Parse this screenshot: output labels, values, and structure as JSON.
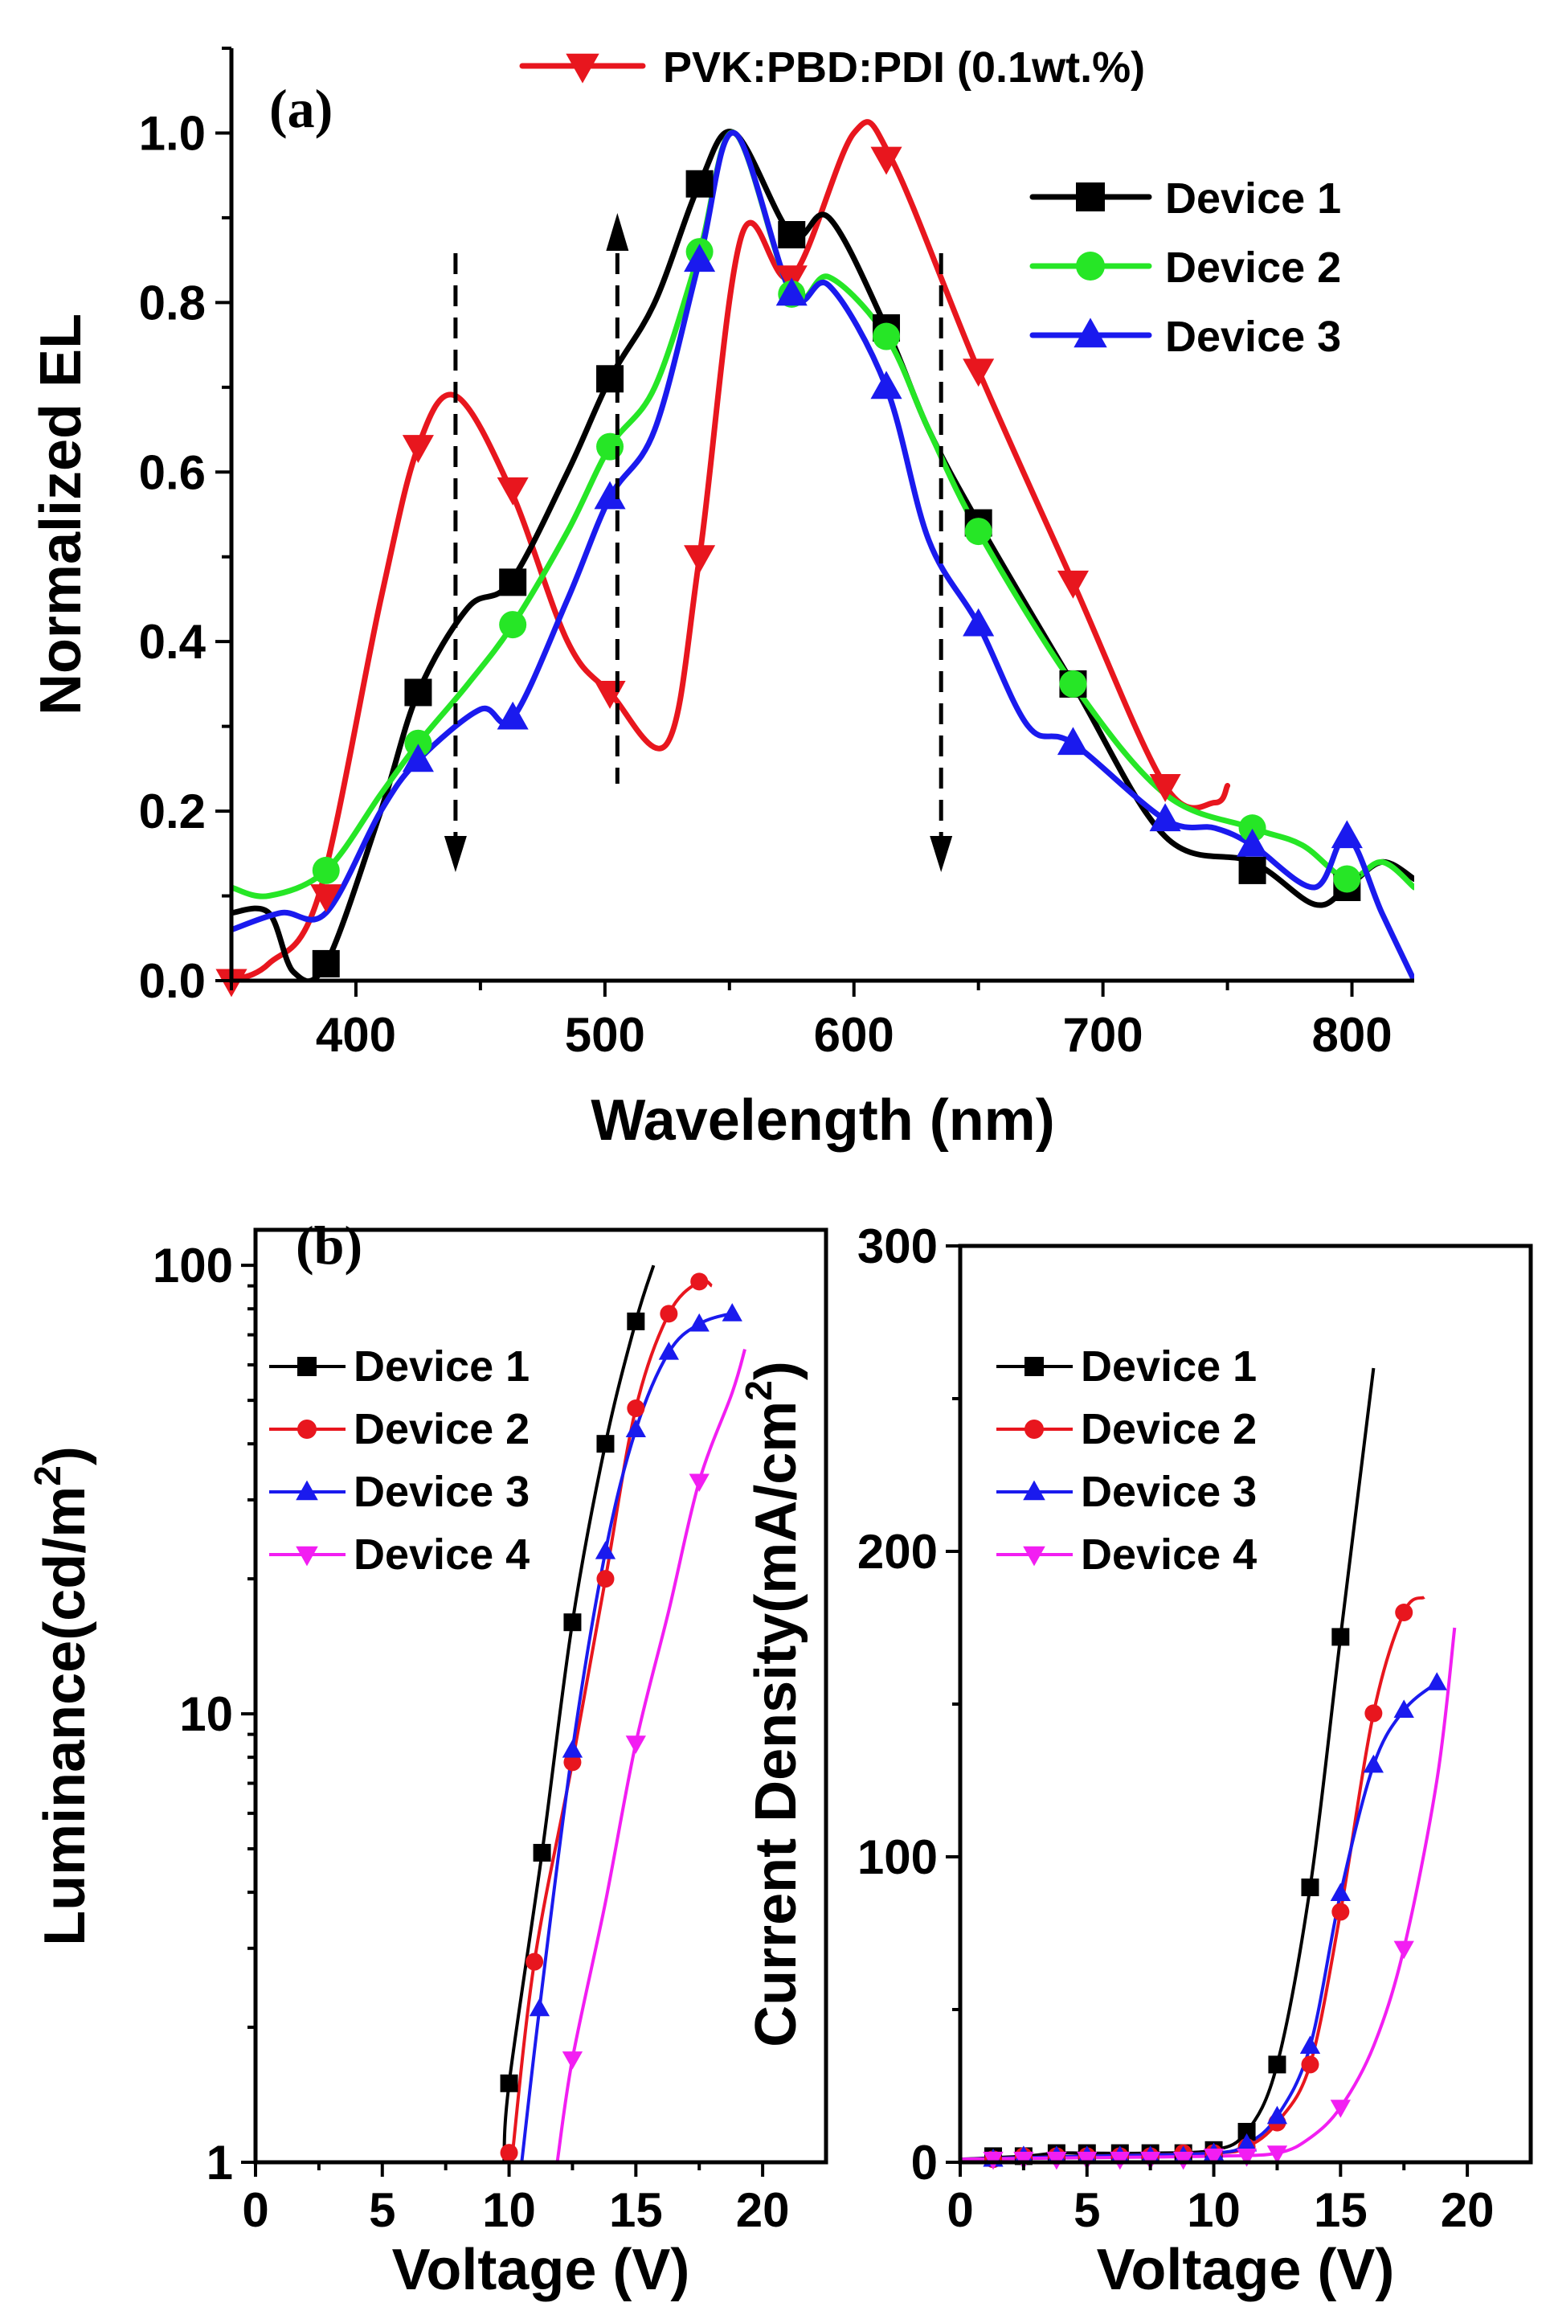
{
  "chart_data": [
    {
      "type": "line",
      "panel_label": "(a)",
      "title": "",
      "xlabel": "Wavelength (nm)",
      "ylabel": "Normalized EL",
      "xlim": [
        350,
        825
      ],
      "ylim": [
        0,
        1.1
      ],
      "xticks": [
        400,
        500,
        600,
        700,
        800
      ],
      "xtick_labels": [
        "400",
        "500",
        "600",
        "700",
        "800"
      ],
      "yticks": [
        0.0,
        0.2,
        0.4,
        0.6,
        0.8,
        1.0
      ],
      "ytick_labels": [
        "0.0",
        "0.2",
        "0.4",
        "0.6",
        "0.8",
        "1.0"
      ],
      "annotations": [
        {
          "x": 440,
          "direction": "down"
        },
        {
          "x": 505,
          "direction": "up"
        },
        {
          "x": 635,
          "direction": "down"
        }
      ],
      "series": [
        {
          "name": "PVK:PBD:PDI (0.1wt.%)",
          "color": "#e8161e",
          "marker": "triangle-down",
          "x": [
            350,
            365,
            385,
            410,
            425,
            440,
            462,
            485,
            502,
            525,
            538,
            555,
            575,
            600,
            615,
            650,
            688,
            725,
            745,
            750
          ],
          "y": [
            0.0,
            0.02,
            0.1,
            0.45,
            0.63,
            0.69,
            0.58,
            0.4,
            0.34,
            0.28,
            0.5,
            0.88,
            0.83,
            1.0,
            0.97,
            0.72,
            0.47,
            0.23,
            0.21,
            0.23
          ],
          "marker_x": [
            350,
            388,
            425,
            463,
            502,
            538,
            575,
            613,
            650,
            688,
            725
          ],
          "marker_y": [
            0.0,
            0.1,
            0.63,
            0.58,
            0.34,
            0.5,
            0.83,
            0.97,
            0.72,
            0.47,
            0.23
          ]
        },
        {
          "name": "Device 1",
          "color": "#000000",
          "marker": "square",
          "x": [
            350,
            365,
            375,
            388,
            410,
            425,
            445,
            462,
            485,
            502,
            520,
            538,
            552,
            575,
            590,
            613,
            630,
            650,
            688,
            725,
            760,
            785,
            798,
            812,
            825
          ],
          "y": [
            0.08,
            0.08,
            0.01,
            0.02,
            0.2,
            0.34,
            0.44,
            0.47,
            0.6,
            0.71,
            0.8,
            0.94,
            1.0,
            0.88,
            0.9,
            0.77,
            0.65,
            0.54,
            0.35,
            0.17,
            0.14,
            0.09,
            0.11,
            0.14,
            0.12
          ],
          "marker_x": [
            388,
            425,
            463,
            502,
            538,
            575,
            613,
            650,
            688,
            760,
            798
          ],
          "marker_y": [
            0.02,
            0.34,
            0.47,
            0.71,
            0.94,
            0.88,
            0.77,
            0.54,
            0.35,
            0.13,
            0.11
          ]
        },
        {
          "name": "Device 2",
          "color": "#26e626",
          "marker": "circle",
          "x": [
            350,
            365,
            388,
            410,
            425,
            445,
            463,
            485,
            502,
            520,
            538,
            552,
            575,
            590,
            613,
            630,
            650,
            688,
            725,
            760,
            780,
            798,
            812,
            825
          ],
          "y": [
            0.11,
            0.1,
            0.13,
            0.22,
            0.28,
            0.35,
            0.42,
            0.53,
            0.63,
            0.7,
            0.86,
            1.0,
            0.81,
            0.83,
            0.76,
            0.65,
            0.53,
            0.35,
            0.22,
            0.18,
            0.16,
            0.12,
            0.14,
            0.11
          ],
          "marker_x": [
            388,
            425,
            463,
            502,
            538,
            575,
            613,
            650,
            688,
            760,
            798
          ],
          "marker_y": [
            0.13,
            0.28,
            0.42,
            0.63,
            0.86,
            0.81,
            0.76,
            0.53,
            0.35,
            0.18,
            0.12
          ]
        },
        {
          "name": "Device 3",
          "color": "#1a1aee",
          "marker": "triangle-up",
          "x": [
            350,
            370,
            388,
            410,
            425,
            450,
            463,
            485,
            502,
            520,
            538,
            552,
            575,
            590,
            613,
            630,
            650,
            670,
            688,
            725,
            745,
            760,
            785,
            798,
            812,
            825
          ],
          "y": [
            0.06,
            0.08,
            0.08,
            0.2,
            0.26,
            0.32,
            0.31,
            0.45,
            0.57,
            0.65,
            0.85,
            1.0,
            0.81,
            0.82,
            0.7,
            0.52,
            0.42,
            0.3,
            0.28,
            0.19,
            0.18,
            0.16,
            0.11,
            0.17,
            0.08,
            0.0
          ],
          "marker_x": [
            425,
            463,
            502,
            538,
            575,
            613,
            650,
            688,
            725,
            760,
            798
          ],
          "marker_y": [
            0.26,
            0.31,
            0.57,
            0.85,
            0.81,
            0.7,
            0.42,
            0.28,
            0.19,
            0.16,
            0.17
          ]
        }
      ]
    },
    {
      "type": "line",
      "panel_label": "(b)",
      "title": "",
      "xlabel": "Voltage (V)",
      "ylabel": "Luminance(cd/m²)",
      "ylabel_main": "Luminance(cd/m",
      "ylabel_sup": "2",
      "ylabel_tail": ")",
      "yscale": "log",
      "xlim": [
        0,
        22.5
      ],
      "ylim": [
        1,
        120
      ],
      "xticks": [
        0,
        5,
        10,
        15,
        20
      ],
      "xtick_labels": [
        "0",
        "5",
        "10",
        "15",
        "20"
      ],
      "yticks": [
        1,
        10,
        100
      ],
      "ytick_labels": [
        "1",
        "10",
        "100"
      ],
      "series": [
        {
          "name": "Device 1",
          "color": "#000000",
          "marker": "square",
          "x": [
            9.8,
            10,
            11.3,
            12.5,
            13.8,
            15,
            15.7
          ],
          "y": [
            1,
            1.5,
            4.9,
            16,
            40,
            75,
            100
          ],
          "marker_x": [
            10,
            11.3,
            12.5,
            13.8,
            15
          ],
          "marker_y": [
            1.5,
            4.9,
            16,
            40,
            75
          ]
        },
        {
          "name": "Device 2",
          "color": "#e8161e",
          "marker": "circle",
          "x": [
            10.1,
            11,
            12.5,
            13.8,
            15,
            16.3,
            17.5,
            18
          ],
          "y": [
            1,
            2.8,
            7.8,
            20,
            48,
            78,
            92,
            90
          ],
          "marker_x": [
            10,
            11,
            12.5,
            13.8,
            15,
            16.3,
            17.5
          ],
          "marker_y": [
            1.05,
            2.8,
            7.8,
            20,
            48,
            78,
            92
          ]
        },
        {
          "name": "Device 3",
          "color": "#1a1aee",
          "marker": "triangle-up",
          "x": [
            10.5,
            11.2,
            12.5,
            13.8,
            15,
            16.3,
            17.5,
            18.8,
            19
          ],
          "y": [
            1,
            2.2,
            8.3,
            23,
            43,
            64,
            74,
            78,
            76
          ],
          "marker_x": [
            11.2,
            12.5,
            13.8,
            15,
            16.3,
            17.5,
            18.8
          ],
          "marker_y": [
            2.2,
            8.3,
            23,
            43,
            64,
            74,
            78
          ]
        },
        {
          "name": "Device 4",
          "color": "#f21ef2",
          "marker": "triangle-down",
          "x": [
            11.9,
            12.5,
            13.8,
            15,
            16.3,
            17.5,
            18.8,
            19.3
          ],
          "y": [
            1,
            1.7,
            3.8,
            8.6,
            17,
            33,
            52,
            65
          ],
          "marker_x": [
            12.5,
            15,
            17.5
          ],
          "marker_y": [
            1.7,
            8.6,
            33
          ]
        }
      ]
    },
    {
      "type": "line",
      "title": "",
      "xlabel": "Voltage (V)",
      "ylabel": "Current Density(mA/cm²)",
      "ylabel_main": "Current Density(mA/cm",
      "ylabel_sup": "2",
      "ylabel_tail": ")",
      "xlim": [
        0,
        22.5
      ],
      "ylim": [
        0,
        300
      ],
      "xticks": [
        0,
        5,
        10,
        15,
        20
      ],
      "xtick_labels": [
        "0",
        "5",
        "10",
        "15",
        "20"
      ],
      "yticks": [
        0,
        100,
        200,
        300
      ],
      "ytick_labels": [
        "0",
        "100",
        "200",
        "300"
      ],
      "series": [
        {
          "name": "Device 1",
          "color": "#000000",
          "marker": "square",
          "x": [
            0,
            2.5,
            3.8,
            5,
            7.5,
            10,
            11.3,
            12.5,
            13.8,
            15,
            16.3
          ],
          "y": [
            1,
            2,
            3,
            3,
            3,
            4,
            10,
            32,
            90,
            172,
            260
          ],
          "marker_x": [
            1.3,
            2.5,
            3.8,
            5,
            6.3,
            7.5,
            8.8,
            10,
            11.3,
            12.5,
            13.8,
            15
          ],
          "marker_y": [
            2,
            2,
            3,
            3,
            3,
            3,
            3,
            4,
            10,
            32,
            90,
            172
          ]
        },
        {
          "name": "Device 2",
          "color": "#e8161e",
          "marker": "circle",
          "x": [
            0,
            5,
            10,
            11.3,
            12.5,
            13.8,
            15,
            16.3,
            17.5,
            18.3
          ],
          "y": [
            1,
            2,
            3,
            5,
            13,
            32,
            82,
            147,
            180,
            185
          ],
          "marker_x": [
            1.3,
            2.5,
            3.8,
            5,
            6.3,
            7.5,
            8.8,
            10,
            11.3,
            12.5,
            13.8,
            15,
            16.3,
            17.5
          ],
          "marker_y": [
            1,
            2,
            2,
            2,
            2,
            2,
            3,
            3,
            5,
            13,
            32,
            82,
            147,
            180
          ]
        },
        {
          "name": "Device 3",
          "color": "#1a1aee",
          "marker": "triangle-up",
          "x": [
            0,
            5,
            10,
            11.3,
            12.5,
            13.8,
            15,
            16.3,
            17.5,
            18.8
          ],
          "y": [
            1,
            2,
            3,
            6,
            15,
            38,
            88,
            130,
            148,
            157
          ],
          "marker_x": [
            1.3,
            2.5,
            3.8,
            5,
            6.3,
            7.5,
            8.8,
            10,
            11.3,
            12.5,
            13.8,
            15,
            16.3,
            17.5,
            18.8
          ],
          "marker_y": [
            1,
            2,
            2,
            2,
            2,
            2,
            2,
            3,
            6,
            15,
            38,
            88,
            130,
            148,
            157
          ]
        },
        {
          "name": "Device 4",
          "color": "#f21ef2",
          "marker": "triangle-down",
          "x": [
            0,
            5,
            10,
            12.5,
            13.8,
            15,
            16.3,
            17.5,
            18.8,
            19.5
          ],
          "y": [
            1,
            1.5,
            2,
            3,
            8,
            18,
            38,
            70,
            125,
            175
          ],
          "marker_x": [
            1.3,
            2.5,
            3.8,
            5,
            6.3,
            7.5,
            8.8,
            10,
            11.3,
            12.5,
            15,
            17.5
          ],
          "marker_y": [
            1,
            1,
            1,
            1,
            1,
            1,
            1,
            2,
            2,
            3,
            18,
            70
          ]
        }
      ]
    }
  ]
}
